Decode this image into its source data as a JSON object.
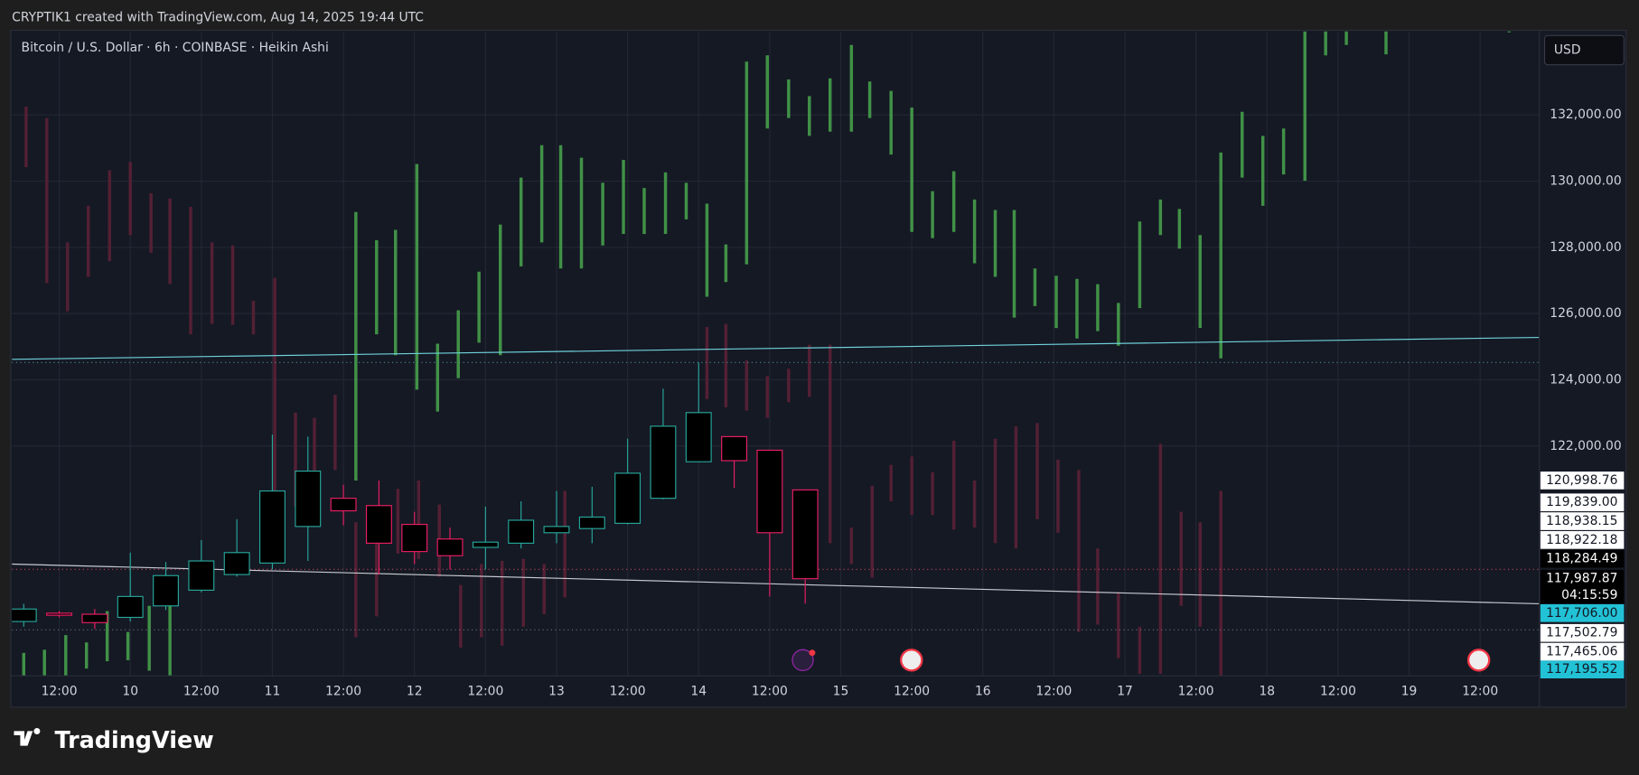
{
  "header": {
    "credit": "CRYPTIK1 created with TradingView.com, Aug 14, 2025 19:44 UTC",
    "brand": "TradingView"
  },
  "chart_data": {
    "type": "candlestick",
    "title": "Bitcoin / U.S. Dollar · 6h · COINBASE · Heikin Ashi",
    "currency": "USD",
    "up_color": "#26a69a",
    "down_color": "#e91e63",
    "x": [
      6,
      12,
      18,
      24,
      30,
      36,
      42,
      48,
      54,
      60,
      66,
      72,
      78,
      84,
      90,
      96,
      102,
      108,
      114,
      120,
      126,
      132,
      138
    ],
    "open": [
      116700,
      116950,
      116919,
      116824,
      117171,
      117645,
      118118,
      118465,
      119569,
      120421,
      120200,
      119632,
      119191,
      118938,
      119064,
      119380,
      119506,
      119664,
      120421,
      121525,
      122283,
      121872,
      120674
    ],
    "high": [
      117234,
      117013,
      117076,
      118780,
      118496,
      119159,
      119790,
      122346,
      122283,
      120831,
      120957,
      120011,
      119537,
      120168,
      120327,
      120642,
      120768,
      122220,
      123734,
      124522,
      122283,
      121872,
      120674
    ],
    "low": [
      116540,
      116824,
      116477,
      116700,
      117045,
      117581,
      118055,
      118275,
      118528,
      119600,
      118118,
      118433,
      118275,
      118275,
      118907,
      119064,
      119064,
      119632,
      120390,
      121525,
      120737,
      117455,
      117235
    ],
    "close": [
      117076,
      116888,
      116666,
      117455,
      118086,
      118528,
      118780,
      120642,
      121241,
      120042,
      119064,
      118812,
      118686,
      119096,
      119758,
      119569,
      119853,
      121178,
      122598,
      123008,
      121557,
      119380,
      117992
    ],
    "overlay_up": {
      "color": "#4caf50",
      "x": [
        6.0,
        9.5,
        13.1,
        16.6,
        20.1,
        23.6,
        27.2,
        30.7,
        62.1,
        65.6,
        68.8,
        72.4,
        75.9,
        79.4,
        82.9,
        86.5,
        90.0,
        93.5,
        96.7,
        100.2,
        103.8,
        107.3,
        110.8,
        114.4,
        117.9,
        121.4,
        124.6,
        128.1,
        131.6,
        135.2,
        138.7,
        142.2,
        145.8,
        148.9,
        152.5,
        156.0,
        159.5,
        163.1,
        166.6,
        170.1,
        173.3,
        176.8,
        180.4,
        183.9,
        187.4,
        190.9,
        194.5,
        198.0,
        201.2,
        204.7,
        208.2,
        211.8,
        215.3,
        218.8,
        222.4,
        225.9,
        229.4,
        236.1,
        256.9
      ],
      "high": [
        115751,
        115846,
        116288,
        116067,
        117013,
        116383,
        117171,
        117802,
        129065,
        128214,
        128529,
        130517,
        125090,
        126100,
        127267,
        128687,
        130107,
        131084,
        131084,
        130706,
        129949,
        130643,
        129791,
        130264,
        129949,
        129318,
        128087,
        133609,
        133798,
        133072,
        132567,
        133104,
        134113,
        133009,
        132725,
        132220,
        129696,
        130296,
        129444,
        129129,
        129129,
        127362,
        127141,
        127046,
        126888,
        126321,
        128781,
        129444,
        129160,
        128371,
        130864,
        132094,
        131368,
        131589,
        134524,
        134524,
        134524,
        134524,
        134587
      ],
      "low": [
        115060,
        115060,
        115060,
        115278,
        115499,
        115530,
        115215,
        115060,
        120957,
        125374,
        124743,
        123702,
        123039,
        124049,
        125122,
        124743,
        127425,
        128150,
        127362,
        127362,
        128056,
        128403,
        128403,
        128403,
        128845,
        126510,
        126952,
        127488,
        131589,
        131905,
        131368,
        131495,
        131495,
        131905,
        130801,
        128466,
        128277,
        128466,
        127519,
        127109,
        125879,
        126226,
        125563,
        125248,
        125469,
        125027,
        126163,
        128371,
        127961,
        125563,
        124648,
        130107,
        129255,
        130201,
        130012,
        133798,
        134113,
        133829,
        134492
      ]
    },
    "overlay_down": {
      "color": "#5a2136",
      "x": [
        6.4,
        9.9,
        13.4,
        16.9,
        20.5,
        24.0,
        27.5,
        30.7,
        34.2,
        37.8,
        41.3,
        44.8,
        48.4,
        51.9,
        55.1,
        58.6,
        62.1,
        65.6,
        69.2,
        72.7,
        76.2,
        79.8,
        83.3,
        86.8,
        90.4,
        93.9,
        97.4,
        121.4,
        124.6,
        128.1,
        131.6,
        135.2,
        138.7,
        142.2,
        145.8,
        149.3,
        152.5,
        156.0,
        159.5,
        163.1,
        166.6,
        170.1,
        173.6,
        177.2,
        180.7,
        184.2,
        187.4,
        190.9,
        194.5,
        198.0,
        201.5,
        204.7,
        208.2
      ],
      "high": [
        132252,
        131905,
        128150,
        129255,
        130327,
        130580,
        129634,
        129476,
        129223,
        128150,
        128056,
        126384,
        127078,
        123008,
        122850,
        123544,
        119695,
        119695,
        120705,
        120957,
        120231,
        117802,
        118433,
        118528,
        118591,
        118433,
        120642,
        125595,
        125690,
        124585,
        124112,
        124333,
        125058,
        125058,
        119537,
        120799,
        121430,
        121682,
        121209,
        122156,
        120957,
        122219,
        122597,
        122692,
        121588,
        121273,
        118906,
        117581,
        116540,
        122061,
        120011,
        119695,
        120642
      ],
      "low": [
        130422,
        126920,
        126068,
        127109,
        127583,
        128371,
        127835,
        126888,
        125374,
        125690,
        125658,
        125374,
        119380,
        120168,
        120326,
        121273,
        116225,
        116855,
        118749,
        118591,
        118055,
        115909,
        116225,
        115972,
        116540,
        116919,
        117424,
        123418,
        123165,
        123071,
        122850,
        123323,
        123481,
        119064,
        118433,
        118023,
        120326,
        119916,
        119916,
        119474,
        119537,
        119064,
        118906,
        119790,
        119380,
        116383,
        116604,
        115594,
        115120,
        115120,
        117171,
        116540,
        115060
      ]
    },
    "lines": [
      {
        "color": "#6fd3dc",
        "x": [
          4,
          262
        ],
        "y": [
          124617,
          125280
        ]
      },
      {
        "color": "#c8cad0",
        "x": [
          4,
          262
        ],
        "y": [
          118433,
          117234
        ]
      }
    ],
    "levels": [
      {
        "value": 124522,
        "color": "#4a8c96"
      },
      {
        "value": 118275,
        "color": "#c2415e"
      },
      {
        "value": 116446,
        "color": "#6b7080"
      }
    ],
    "xlim": [
      4,
      262
    ],
    "ylim": [
      115060,
      134524
    ],
    "xticks": [
      {
        "value": 12,
        "label": "12:00"
      },
      {
        "value": 24,
        "label": "10"
      },
      {
        "value": 36,
        "label": "12:00"
      },
      {
        "value": 48,
        "label": "11"
      },
      {
        "value": 60,
        "label": "12:00"
      },
      {
        "value": 72,
        "label": "12"
      },
      {
        "value": 84,
        "label": "12:00"
      },
      {
        "value": 96,
        "label": "13"
      },
      {
        "value": 108,
        "label": "12:00"
      },
      {
        "value": 120,
        "label": "14"
      },
      {
        "value": 132,
        "label": "12:00"
      },
      {
        "value": 144,
        "label": "15"
      },
      {
        "value": 156,
        "label": "12:00"
      },
      {
        "value": 168,
        "label": "16"
      },
      {
        "value": 180,
        "label": "12:00"
      },
      {
        "value": 192,
        "label": "17"
      },
      {
        "value": 204,
        "label": "12:00"
      },
      {
        "value": 216,
        "label": "18"
      },
      {
        "value": 228,
        "label": "12:00"
      },
      {
        "value": 240,
        "label": "19"
      },
      {
        "value": 252,
        "label": "12:00"
      }
    ],
    "yticks": [
      {
        "value": 122000,
        "label": "122,000.00"
      },
      {
        "value": 124000,
        "label": "124,000.00"
      },
      {
        "value": 126000,
        "label": "126,000.00"
      },
      {
        "value": 128000,
        "label": "128,000.00"
      },
      {
        "value": 130000,
        "label": "130,000.00"
      },
      {
        "value": 132000,
        "label": "132,000.00"
      }
    ],
    "grid": true,
    "price_labels": [
      {
        "value": 120998.76,
        "label": "120,998.76",
        "bg": "#ffffff",
        "fg": "#131722"
      },
      {
        "value": 119839.0,
        "label": "119,839.00",
        "bg": "#ffffff",
        "fg": "#131722"
      },
      {
        "value": 118938.15,
        "label": "118,938.15",
        "bg": "#ffffff",
        "fg": "#131722"
      },
      {
        "value": 118922.18,
        "label": "118,922.18",
        "bg": "#ffffff",
        "fg": "#131722"
      },
      {
        "value": 118284.49,
        "label": "118,284.49",
        "bg": "#000000",
        "fg": "#ffffff"
      },
      {
        "value": 117987.87,
        "label": "117,987.87",
        "bg": "#000000",
        "fg": "#ffffff"
      },
      {
        "value": 117706.0,
        "label": "117,706.00",
        "bg": "#22c1d6",
        "fg": "#131722"
      },
      {
        "value": 117502.79,
        "label": "117,502.79",
        "bg": "#ffffff",
        "fg": "#131722"
      },
      {
        "value": 117465.06,
        "label": "117,465.06",
        "bg": "#ffffff",
        "fg": "#131722"
      },
      {
        "value": 117195.52,
        "label": "117,195.52",
        "bg": "#22c1d6",
        "fg": "#131722"
      }
    ],
    "countdown": "04:15:59"
  }
}
